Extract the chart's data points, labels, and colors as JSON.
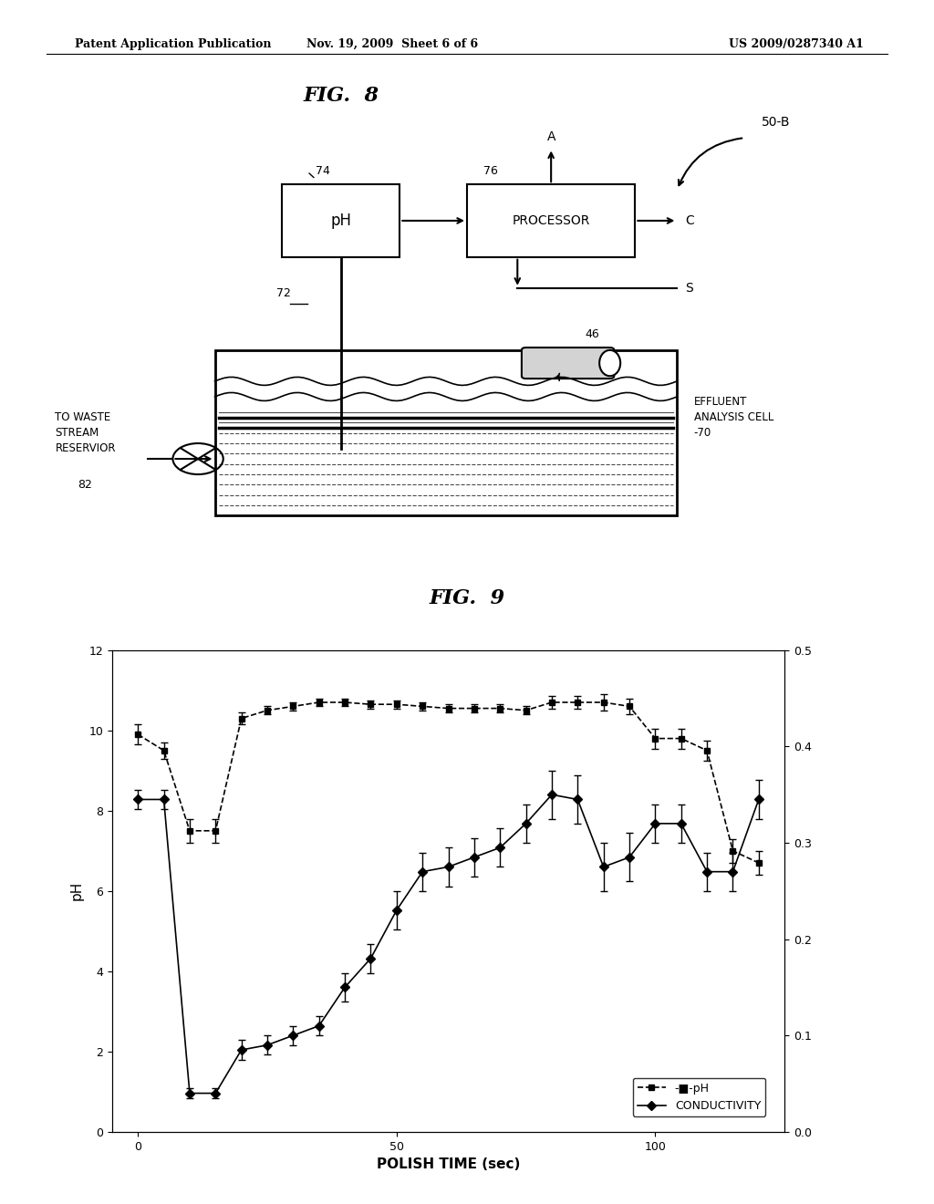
{
  "header_left": "Patent Application Publication",
  "header_mid": "Nov. 19, 2009  Sheet 6 of 6",
  "header_right": "US 2009/0287340 A1",
  "fig8_title": "FIG.  8",
  "fig9_title": "FIG.  9",
  "label_50B": "50-B",
  "label_74": "74",
  "label_76": "76",
  "label_72": "72",
  "label_46": "46",
  "label_70": "70",
  "label_82": "82",
  "label_A": "A",
  "label_C": "C",
  "label_S": "S",
  "label_pH_box": "pH",
  "label_processor": "PROCESSOR",
  "label_waste": "TO WASTE\nSTREAM\nRESERVIOR\n82",
  "label_effluent": "EFFLUENT\nANALYSIS CELL\n-70",
  "ph_x": [
    0,
    5,
    10,
    15,
    20,
    25,
    30,
    35,
    40,
    45,
    50,
    55,
    60,
    65,
    70,
    75,
    80,
    85,
    90,
    95,
    100,
    105,
    110,
    115,
    120
  ],
  "ph_y": [
    9.9,
    9.5,
    7.5,
    7.5,
    10.3,
    10.5,
    10.6,
    10.7,
    10.7,
    10.65,
    10.65,
    10.6,
    10.55,
    10.55,
    10.55,
    10.5,
    10.7,
    10.7,
    10.7,
    10.6,
    9.8,
    9.8,
    9.5,
    7.0,
    6.7
  ],
  "ph_yerr": [
    0.25,
    0.2,
    0.3,
    0.3,
    0.15,
    0.1,
    0.1,
    0.1,
    0.1,
    0.1,
    0.1,
    0.1,
    0.1,
    0.1,
    0.1,
    0.1,
    0.15,
    0.15,
    0.2,
    0.2,
    0.25,
    0.25,
    0.25,
    0.3,
    0.3
  ],
  "cond_x": [
    0,
    5,
    10,
    15,
    20,
    25,
    30,
    35,
    40,
    45,
    50,
    55,
    60,
    65,
    70,
    75,
    80,
    85,
    90,
    95,
    100,
    105,
    110,
    115,
    120
  ],
  "cond_y": [
    0.345,
    0.345,
    0.04,
    0.04,
    0.085,
    0.09,
    0.1,
    0.11,
    0.15,
    0.18,
    0.23,
    0.27,
    0.275,
    0.285,
    0.295,
    0.32,
    0.35,
    0.345,
    0.275,
    0.285,
    0.32,
    0.32,
    0.27,
    0.27,
    0.345
  ],
  "cond_yerr": [
    0.01,
    0.01,
    0.005,
    0.005,
    0.01,
    0.01,
    0.01,
    0.01,
    0.015,
    0.015,
    0.02,
    0.02,
    0.02,
    0.02,
    0.02,
    0.02,
    0.025,
    0.025,
    0.025,
    0.025,
    0.02,
    0.02,
    0.02,
    0.02,
    0.02
  ],
  "xlabel": "POLISH TIME (sec)",
  "ylabel_left": "pH",
  "ylabel_right": "",
  "xlim": [
    -5,
    125
  ],
  "ylim_left": [
    0,
    12
  ],
  "ylim_right": [
    0,
    0.5
  ],
  "xticks": [
    0,
    50,
    100
  ],
  "yticks_left": [
    0,
    2,
    4,
    6,
    8,
    10,
    12
  ],
  "yticks_right": [
    0,
    0.1,
    0.2,
    0.3,
    0.4,
    0.5
  ],
  "legend_ph": "-■-pH",
  "legend_cond": "CONDUCTIVITY",
  "bg_color": "#ffffff",
  "line_color": "#000000"
}
